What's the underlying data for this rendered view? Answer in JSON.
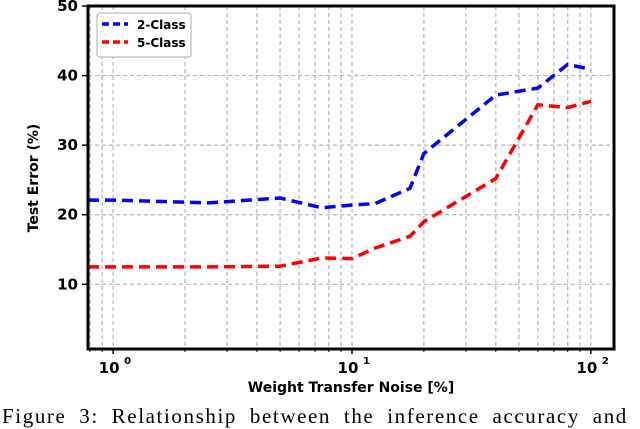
{
  "chart_data": {
    "type": "line",
    "title": "",
    "xlabel": "Weight Transfer Noise [%]",
    "ylabel": "Test Error (%)",
    "xscale": "log",
    "xlim": [
      0.785,
      125
    ],
    "ylim": [
      0.7,
      50
    ],
    "x_ticks": [
      {
        "value": 1,
        "label": "10",
        "exp": "0"
      },
      {
        "value": 10,
        "label": "10",
        "exp": "1"
      },
      {
        "value": 100,
        "label": "10",
        "exp": "2"
      }
    ],
    "y_ticks": [
      10,
      20,
      30,
      40,
      50
    ],
    "grid": true,
    "legend_position": "upper left",
    "series": [
      {
        "name": "2-Class",
        "color": "#0000ff",
        "linestyle": "dashed",
        "x": [
          0.785,
          1,
          2,
          2.5,
          5,
          7.5,
          10,
          12.5,
          17.5,
          20,
          40,
          60,
          80,
          100
        ],
        "y": [
          22.1,
          22.1,
          21.8,
          21.7,
          22.4,
          21.0,
          21.4,
          21.6,
          23.8,
          28.8,
          37.2,
          38.2,
          41.6,
          40.9
        ]
      },
      {
        "name": "5-Class",
        "color": "#ff0000",
        "linestyle": "dashed",
        "x": [
          0.785,
          1,
          2,
          2.5,
          5,
          7.5,
          10,
          12.5,
          17.5,
          20,
          40,
          60,
          80,
          100
        ],
        "y": [
          12.5,
          12.5,
          12.5,
          12.5,
          12.6,
          13.8,
          13.7,
          15.2,
          16.9,
          19.0,
          25.2,
          35.8,
          35.4,
          36.3
        ]
      }
    ]
  },
  "caption": "Figure 3: Relationship between the inference accuracy and"
}
